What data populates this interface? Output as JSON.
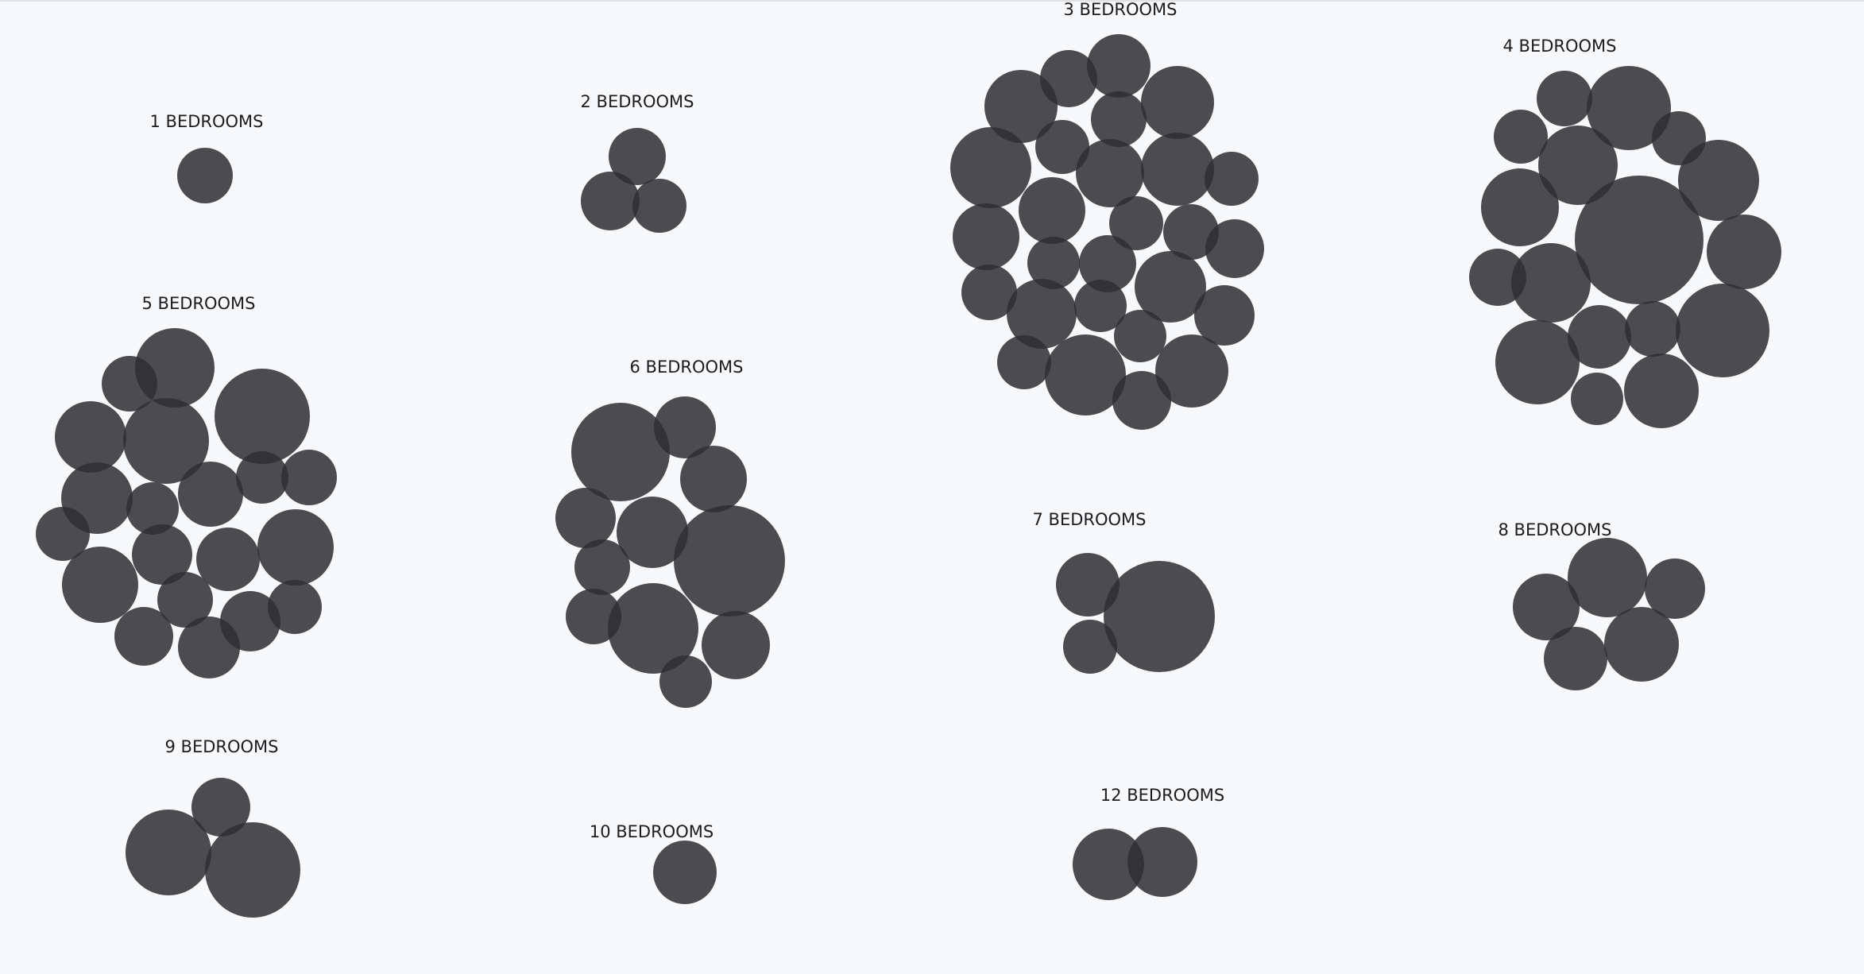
{
  "chart_data": {
    "type": "bubble-cluster",
    "title": "",
    "colors": {
      "background": "#f7f8fc",
      "bubble": "#303032",
      "label": "#1c1c1c"
    },
    "groups": [
      {
        "label": "1 BEDROOMS",
        "count": 1
      },
      {
        "label": "2 BEDROOMS",
        "count": 3
      },
      {
        "label": "3 BEDROOMS",
        "count": 31
      },
      {
        "label": "4 BEDROOMS",
        "count": 19
      },
      {
        "label": "5 BEDROOMS",
        "count": 22
      },
      {
        "label": "6 BEDROOMS",
        "count": 13
      },
      {
        "label": "7 BEDROOMS",
        "count": 3
      },
      {
        "label": "8 BEDROOMS",
        "count": 5
      },
      {
        "label": "9 BEDROOMS",
        "count": 3
      },
      {
        "label": "10 BEDROOMS",
        "count": 1
      },
      {
        "label": "12 BEDROOMS",
        "count": 2
      }
    ]
  }
}
